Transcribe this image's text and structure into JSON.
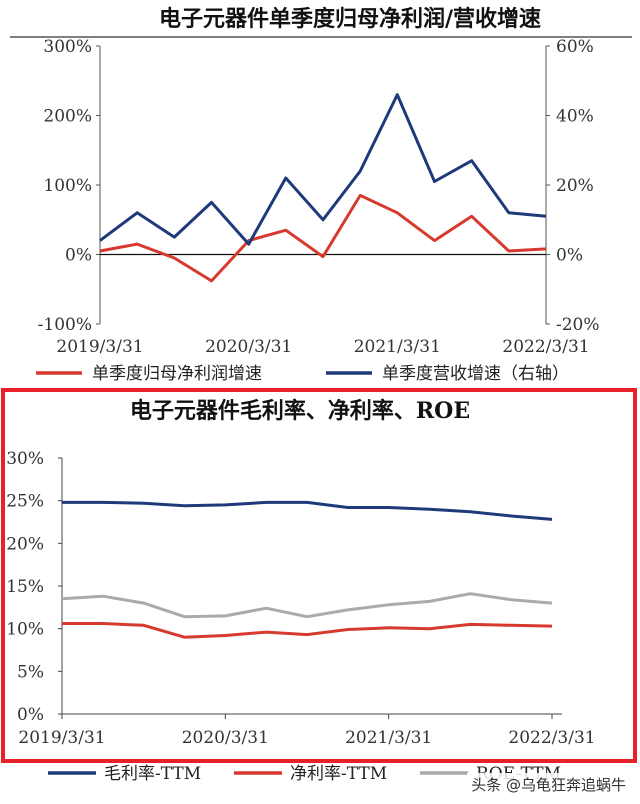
{
  "watermark": "头条 @乌龟狂奔追蜗牛",
  "chart_data": [
    {
      "type": "line",
      "title": "电子元器件单季度归母净利润/营收增速",
      "x": [
        "2019/3/31",
        "2019/6/30",
        "2019/9/30",
        "2019/12/31",
        "2020/3/31",
        "2020/6/30",
        "2020/9/30",
        "2020/12/31",
        "2021/3/31",
        "2021/6/30",
        "2021/9/30",
        "2021/12/31",
        "2022/3/31"
      ],
      "x_tick_labels": [
        "2019/3/31",
        "2020/3/31",
        "2021/3/31",
        "2022/3/31"
      ],
      "y_left": {
        "min": -100,
        "max": 300,
        "ticks": [
          "-100%",
          "0%",
          "100%",
          "200%",
          "300%"
        ]
      },
      "y_right": {
        "min": -20,
        "max": 60,
        "ticks": [
          "-20%",
          "0%",
          "20%",
          "40%",
          "60%"
        ]
      },
      "grid": false,
      "legend_position": "bottom",
      "series": [
        {
          "name": "单季度归母净利润增速",
          "axis": "left",
          "color": "#d63a2f",
          "values": [
            5,
            15,
            -5,
            -38,
            20,
            35,
            -3,
            85,
            60,
            20,
            55,
            5,
            8
          ]
        },
        {
          "name": "单季度营收增速（右轴）",
          "axis": "right",
          "color": "#1f3a7a",
          "values": [
            4,
            12,
            5,
            15,
            3,
            22,
            10,
            24,
            46,
            21,
            27,
            12,
            11
          ]
        }
      ]
    },
    {
      "type": "line",
      "title": "电子元器件毛利率、净利率、ROE",
      "x": [
        "2019/3/31",
        "2019/6/30",
        "2019/9/30",
        "2019/12/31",
        "2020/3/31",
        "2020/6/30",
        "2020/9/30",
        "2020/12/31",
        "2021/3/31",
        "2021/6/30",
        "2021/9/30",
        "2021/12/31",
        "2022/3/31"
      ],
      "x_tick_labels": [
        "2019/3/31",
        "2020/3/31",
        "2021/3/31",
        "2022/3/31"
      ],
      "y": {
        "min": 0,
        "max": 30,
        "ticks": [
          "0%",
          "5%",
          "10%",
          "15%",
          "20%",
          "25%",
          "30%"
        ]
      },
      "grid": false,
      "legend_position": "bottom",
      "series": [
        {
          "name": "毛利率-TTM",
          "color": "#1f3a7a",
          "values": [
            24.8,
            24.8,
            24.7,
            24.4,
            24.5,
            24.8,
            24.8,
            24.2,
            24.2,
            24.0,
            23.7,
            23.2,
            22.8
          ]
        },
        {
          "name": "净利率-TTM",
          "color": "#d63a2f",
          "values": [
            10.6,
            10.6,
            10.4,
            9.0,
            9.2,
            9.6,
            9.3,
            9.9,
            10.1,
            10.0,
            10.5,
            10.4,
            10.3
          ]
        },
        {
          "name": "ROE-TTM",
          "color": "#aaaaaa",
          "values": [
            13.5,
            13.8,
            13.0,
            11.4,
            11.5,
            12.4,
            11.4,
            12.2,
            12.8,
            13.2,
            14.1,
            13.4,
            13.0
          ]
        }
      ]
    }
  ]
}
